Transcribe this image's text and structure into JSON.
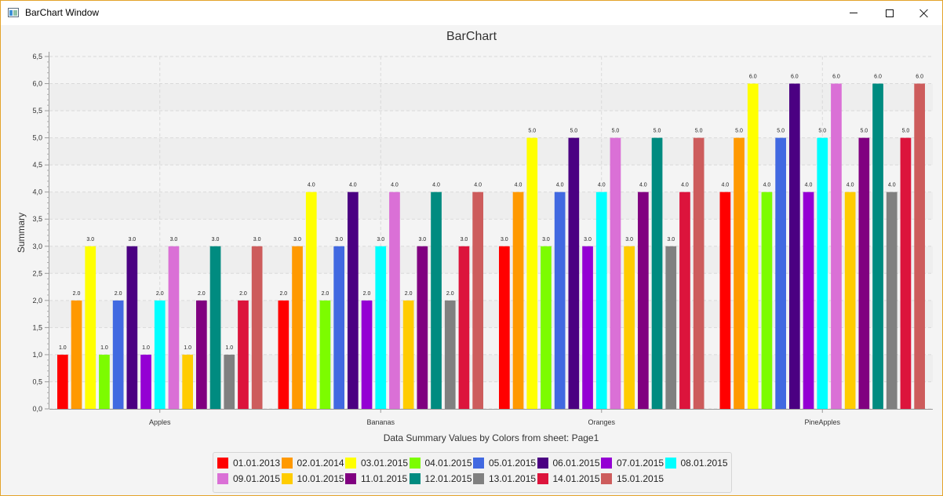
{
  "window": {
    "title": "BarChart Window"
  },
  "chart_data": {
    "type": "bar",
    "title": "BarChart",
    "xlabel": "Data Summary Values by Colors from sheet: Page1",
    "ylabel": "Summary",
    "ylim": [
      0,
      6.5
    ],
    "ytick_step": 0.5,
    "yticks": [
      "0,0",
      "0,5",
      "1,0",
      "1,5",
      "2,0",
      "2,5",
      "3,0",
      "3,5",
      "4,0",
      "4,5",
      "5,0",
      "5,5",
      "6,0",
      "6,5"
    ],
    "grid": true,
    "legend": "bottom",
    "categories": [
      "Apples",
      "Bananas",
      "Oranges",
      "PineApples"
    ],
    "series": [
      {
        "name": "01.01.2013",
        "color": "#ff0000",
        "values": [
          1.0,
          2.0,
          3.0,
          4.0
        ],
        "labels": [
          "1.0",
          "2.0",
          "3.0",
          "4.0"
        ]
      },
      {
        "name": "02.01.2014",
        "color": "#ff9900",
        "values": [
          2.0,
          3.0,
          4.0,
          5.0
        ],
        "labels": [
          "2.0",
          "3.0",
          "4.0",
          "5.0"
        ]
      },
      {
        "name": "03.01.2015",
        "color": "#ffff00",
        "values": [
          3.0,
          4.0,
          5.0,
          6.0
        ],
        "labels": [
          "3.0",
          "4.0",
          "5.0",
          "6.0"
        ]
      },
      {
        "name": "04.01.2015",
        "color": "#7cfc00",
        "values": [
          1.0,
          2.0,
          3.0,
          4.0
        ],
        "labels": [
          "1.0",
          "2.0",
          "3.0",
          "4.0"
        ]
      },
      {
        "name": "05.01.2015",
        "color": "#4169e1",
        "values": [
          2.0,
          3.0,
          4.0,
          5.0
        ],
        "labels": [
          "2.0",
          "3.0",
          "4.0",
          "5.0"
        ]
      },
      {
        "name": "06.01.2015",
        "color": "#4b0082",
        "values": [
          3.0,
          4.0,
          5.0,
          6.0
        ],
        "labels": [
          "3.0",
          "4.0",
          "5.0",
          "6.0"
        ]
      },
      {
        "name": "07.01.2015",
        "color": "#9400d3",
        "values": [
          1.0,
          2.0,
          3.0,
          4.0
        ],
        "labels": [
          "1.0",
          "2.0",
          "3.0",
          "4.0"
        ]
      },
      {
        "name": "08.01.2015",
        "color": "#00ffff",
        "values": [
          2.0,
          3.0,
          4.0,
          5.0
        ],
        "labels": [
          "2.0",
          "3.0",
          "4.0",
          "5.0"
        ]
      },
      {
        "name": "09.01.2015",
        "color": "#da70d6",
        "values": [
          3.0,
          4.0,
          5.0,
          6.0
        ],
        "labels": [
          "3.0",
          "4.0",
          "5.0",
          "6.0"
        ]
      },
      {
        "name": "10.01.2015",
        "color": "#ffcc00",
        "values": [
          1.0,
          2.0,
          3.0,
          4.0
        ],
        "labels": [
          "1.0",
          "2.0",
          "3.0",
          "4.0"
        ]
      },
      {
        "name": "11.01.2015",
        "color": "#800080",
        "values": [
          2.0,
          3.0,
          4.0,
          5.0
        ],
        "labels": [
          "2.0",
          "3.0",
          "4.0",
          "5.0"
        ]
      },
      {
        "name": "12.01.2015",
        "color": "#008b80",
        "values": [
          3.0,
          4.0,
          5.0,
          6.0
        ],
        "labels": [
          "3.0",
          "4.0",
          "5.0",
          "6.0"
        ]
      },
      {
        "name": "13.01.2015",
        "color": "#808080",
        "values": [
          1.0,
          2.0,
          3.0,
          4.0
        ],
        "labels": [
          "1.0",
          "2.0",
          "3.0",
          "4.0"
        ]
      },
      {
        "name": "14.01.2015",
        "color": "#dc143c",
        "values": [
          2.0,
          3.0,
          4.0,
          5.0
        ],
        "labels": [
          "2.0",
          "3.0",
          "4.0",
          "5.0"
        ]
      },
      {
        "name": "15.01.2015",
        "color": "#cd5c5c",
        "values": [
          3.0,
          4.0,
          5.0,
          6.0
        ],
        "labels": [
          "3.0",
          "4.0",
          "5.0",
          "6.0"
        ]
      }
    ]
  }
}
